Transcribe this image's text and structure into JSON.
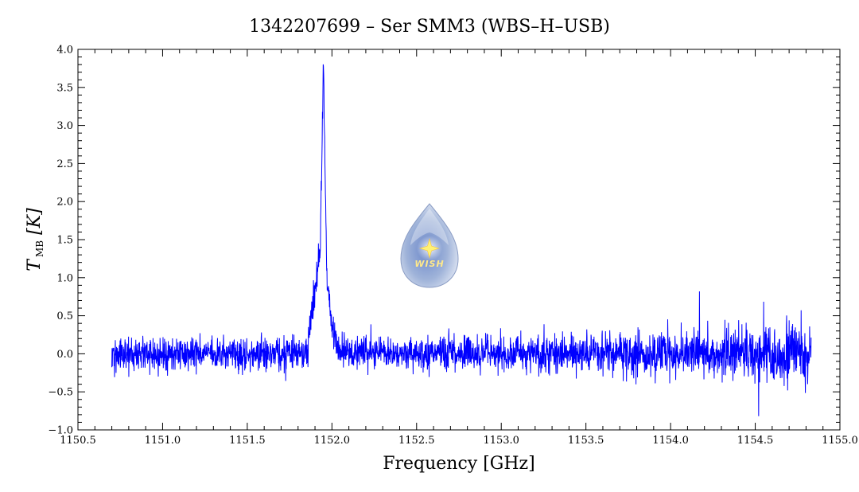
{
  "chart_data": {
    "type": "line",
    "title": "1342207699 – Ser SMM3 (WBS–H–USB)",
    "xlabel": "Frequency [GHz]",
    "ylabel": {
      "main": "T",
      "sub": "MB",
      "unit": " [K]"
    },
    "xlim": [
      1150.5,
      1155.0
    ],
    "ylim": [
      -1.0,
      4.0
    ],
    "xticks": [
      "1150.5",
      "1151.0",
      "1151.5",
      "1152.0",
      "1152.5",
      "1153.0",
      "1153.5",
      "1154.0",
      "1154.5",
      "1155.0"
    ],
    "yticks": [
      "−1.0",
      "−0.5",
      "0.0",
      "0.5",
      "1.0",
      "1.5",
      "2.0",
      "2.5",
      "3.0",
      "3.5",
      "4.0"
    ],
    "grid": false,
    "series": [
      {
        "color": "#0000ff",
        "x_range": [
          1150.7,
          1154.83
        ],
        "noise_rms_K": [
          0.12,
          0.22
        ],
        "peaks": [
          {
            "x": 1151.95,
            "y": 3.78
          },
          {
            "x": 1151.92,
            "y": 1.45
          },
          {
            "x": 1154.17,
            "y": 0.82
          },
          {
            "x": 1154.52,
            "y": -0.82
          }
        ],
        "profile": [
          {
            "x": 1151.86,
            "y": 0.25
          },
          {
            "x": 1151.9,
            "y": 0.8
          },
          {
            "x": 1151.93,
            "y": 1.3
          },
          {
            "x": 1151.95,
            "y": 3.78
          },
          {
            "x": 1151.97,
            "y": 1.0
          },
          {
            "x": 1152.0,
            "y": 0.35
          },
          {
            "x": 1152.04,
            "y": 0.08
          }
        ]
      }
    ]
  },
  "logo": {
    "text": "WISH",
    "colors": {
      "drop": "#9fb3d9",
      "star": "#fff176"
    }
  }
}
